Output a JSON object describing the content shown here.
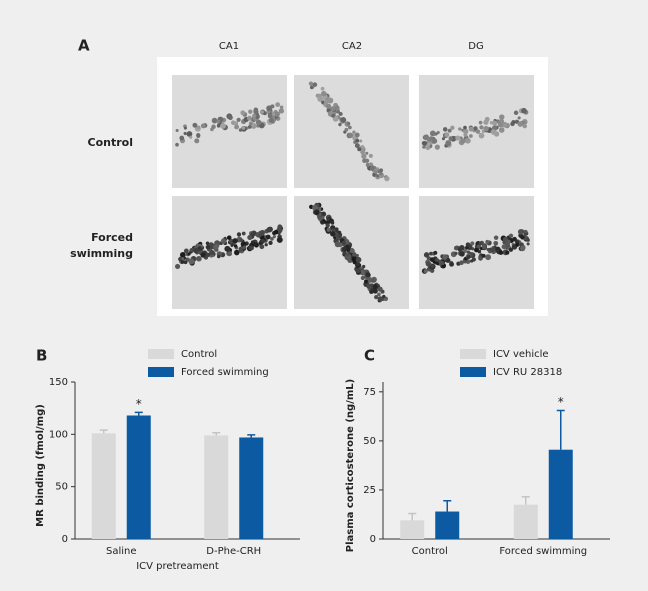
{
  "panel_a": {
    "label": "A",
    "columns": [
      "CA1",
      "CA2",
      "DG"
    ],
    "rows": [
      "Control",
      "Forced swimming"
    ]
  },
  "chart_data": [
    {
      "type": "bar",
      "label": "B",
      "ylabel": "MR binding (fmol/mg)",
      "xlabel": "ICV pretreament",
      "categories": [
        "Saline",
        "D-Phe-CRH"
      ],
      "series": [
        {
          "name": "Control",
          "color": "#d9d9d9",
          "values": [
            101,
            99
          ],
          "errors": [
            3,
            2.5
          ]
        },
        {
          "name": "Forced swimming",
          "color": "#0b5aa2",
          "values": [
            118,
            97
          ],
          "errors": [
            3,
            2.5
          ]
        }
      ],
      "annotations": [
        {
          "text": "*",
          "category": "Saline",
          "series": "Forced swimming"
        }
      ],
      "ylim": [
        0,
        150
      ],
      "yticks": [
        0,
        50,
        100,
        150
      ]
    },
    {
      "type": "bar",
      "label": "C",
      "ylabel": "Plasma corticosterone (ng/mL)",
      "categories": [
        "Control",
        "Forced swimming"
      ],
      "series": [
        {
          "name": "ICV vehicle",
          "color": "#d9d9d9",
          "values": [
            9.5,
            17.5
          ],
          "errors": [
            3.5,
            4
          ]
        },
        {
          "name": "ICV RU 28318",
          "color": "#0b5aa2",
          "values": [
            14,
            45.5
          ],
          "errors": [
            5.5,
            20
          ]
        }
      ],
      "annotations": [
        {
          "text": "*",
          "category": "Forced swimming",
          "series": "ICV RU 28318"
        }
      ],
      "ylim": [
        0,
        80
      ],
      "yticks": [
        0,
        25,
        50,
        75
      ]
    }
  ]
}
